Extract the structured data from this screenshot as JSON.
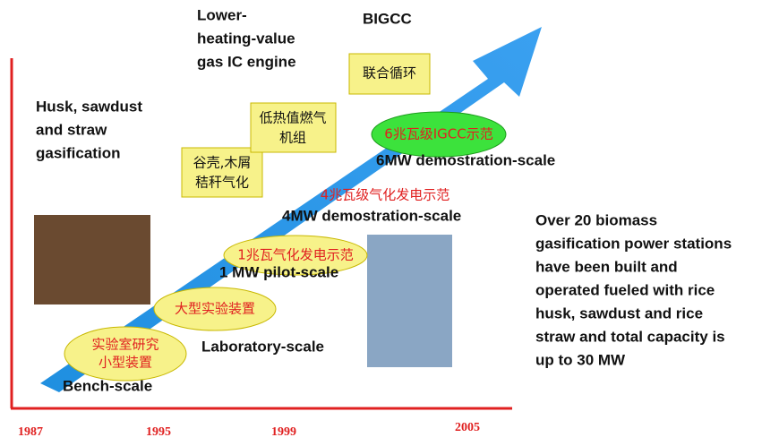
{
  "timeline": {
    "years": [
      "1987",
      "1995",
      "1999",
      "2005"
    ]
  },
  "stages": [
    {
      "cn": [
        "实验室研究",
        "小型装置"
      ],
      "en": "Bench-scale"
    },
    {
      "cn": [
        "大型实验装置"
      ],
      "en": "Laboratory-scale"
    },
    {
      "cn": [
        "1兆瓦气化发电示范"
      ],
      "en": "1 MW pilot-scale"
    },
    {
      "cn": [
        "4兆瓦级气化发电示范"
      ],
      "en": "4MW demostration-scale"
    },
    {
      "cn": [
        "6兆瓦级IGCC示范"
      ],
      "en": "6MW demostration-scale"
    }
  ],
  "callouts": [
    {
      "cn": [
        "谷壳,木屑",
        "秸秆气化"
      ],
      "en": [
        "Husk, sawdust",
        "and straw",
        "gasification"
      ]
    },
    {
      "cn": [
        "低热值燃气",
        "机组"
      ],
      "en": [
        "Lower-",
        "heating-value",
        "gas IC engine"
      ]
    },
    {
      "cn": [
        "联合循环"
      ],
      "en": [
        "BIGCC"
      ]
    }
  ],
  "summary": [
    "Over 20 biomass",
    "gasification power stations",
    "have been built and",
    "operated fueled with rice",
    "husk, sawdust and rice",
    "straw and total capacity is",
    "up to 30 MW"
  ]
}
